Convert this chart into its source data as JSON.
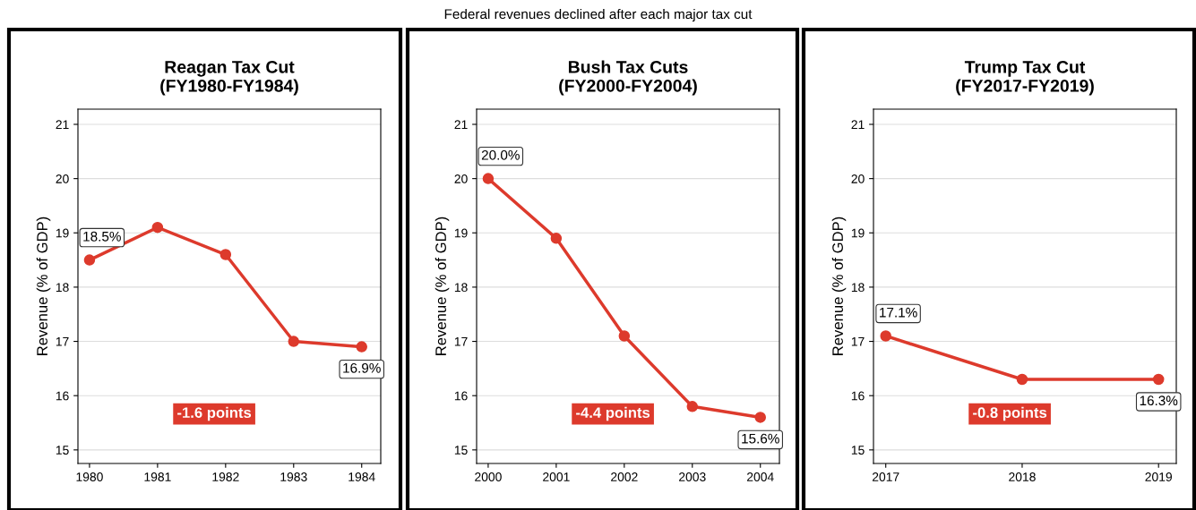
{
  "chart_data": [
    {
      "type": "line",
      "title": "Reagan Tax Cut\n(FY1980-FY1984)",
      "ylabel": "Revenue (% of GDP)",
      "x": [
        1980,
        1981,
        1982,
        1983,
        1984
      ],
      "series": [
        {
          "color": "#dd3a2c",
          "values": [
            18.5,
            19.1,
            18.6,
            17.0,
            16.9
          ],
          "value_labels": [
            "18.5%",
            null,
            null,
            null,
            "16.9%"
          ]
        }
      ],
      "xlim": [
        1979.83,
        1984.28
      ],
      "xticks": [
        1980,
        1981,
        1982,
        1983,
        1984
      ],
      "ylim": [
        14.75,
        21.28
      ],
      "yticks": [
        15,
        16,
        17,
        18,
        19,
        20,
        21
      ],
      "grid": "y",
      "marker": "circle",
      "line_style": "solid",
      "legend": false,
      "annotations": [
        "Federal revenues declined after each major tax cut",
        "-1.6 points"
      ]
    },
    {
      "type": "line",
      "title": "Bush Tax Cuts\n(FY2000-FY2004)",
      "ylabel": "Revenue (% of GDP)",
      "x": [
        2000,
        2001,
        2002,
        2003,
        2004
      ],
      "series": [
        {
          "color": "#dd3a2c",
          "values": [
            20.0,
            18.9,
            17.1,
            15.8,
            15.6
          ],
          "value_labels": [
            "20.0%",
            null,
            null,
            null,
            "15.6%"
          ]
        }
      ],
      "xlim": [
        1999.83,
        2004.28
      ],
      "xticks": [
        2000,
        2001,
        2002,
        2003,
        2004
      ],
      "ylim": [
        14.75,
        21.28
      ],
      "yticks": [
        15,
        16,
        17,
        18,
        19,
        20,
        21
      ],
      "grid": "y",
      "marker": "circle",
      "line_style": "solid",
      "legend": false,
      "annotations": [
        "-4.4 points"
      ]
    },
    {
      "type": "line",
      "title": "Trump Tax Cut\n(FY2017-FY2019)",
      "ylabel": "Revenue (% of GDP)",
      "x": [
        2017,
        2018,
        2019
      ],
      "series": [
        {
          "color": "#dd3a2c",
          "values": [
            17.1,
            16.3,
            16.3
          ],
          "value_labels": [
            "17.1%",
            null,
            "16.3%"
          ]
        }
      ],
      "xlim": [
        2016.91,
        2019.13
      ],
      "xticks": [
        2017,
        2018,
        2019
      ],
      "ylim": [
        14.75,
        21.28
      ],
      "yticks": [
        15,
        16,
        17,
        18,
        19,
        20,
        21
      ],
      "grid": "y",
      "marker": "circle",
      "line_style": "solid",
      "legend": false,
      "annotations": [
        "-0.8 points"
      ]
    }
  ]
}
